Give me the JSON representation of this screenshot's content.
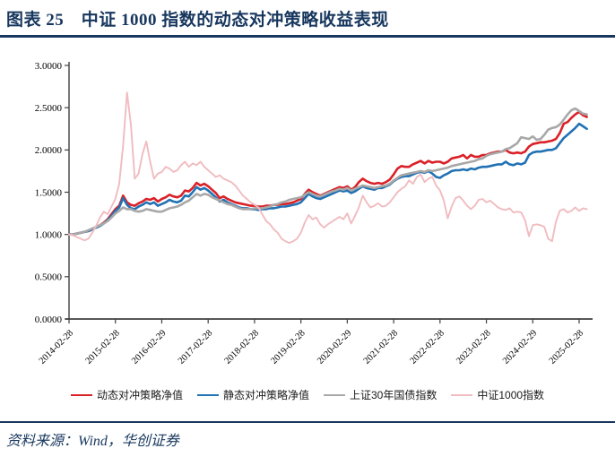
{
  "header": {
    "title": "图表 25　中证 1000 指数的动态对冲策略收益表现"
  },
  "footer": {
    "source": "资料来源：Wind，华创证券"
  },
  "colors": {
    "accent_navy": "#17375E",
    "axis": "#404040",
    "series_red": "#DA2128",
    "series_blue": "#2272B4",
    "series_gray": "#A8A8A8",
    "series_pink": "#F0BCC0"
  },
  "chart_data": {
    "type": "line",
    "title": "",
    "xlabel": "",
    "ylabel": "",
    "ylim": [
      0,
      3
    ],
    "grid": false,
    "legend_position": "bottom",
    "x_tick_labels": [
      "2014-02-28",
      "2015-02-28",
      "2016-02-29",
      "2017-02-28",
      "2018-02-28",
      "2019-02-28",
      "2020-02-29",
      "2021-02-28",
      "2022-02-28",
      "2023-02-28",
      "2024-02-29",
      "2025-02-28"
    ],
    "y_ticks": [
      {
        "value": 3.0,
        "label": "3.0000"
      },
      {
        "value": 2.5,
        "label": "2.5000"
      },
      {
        "value": 2.0,
        "label": "2.0000"
      },
      {
        "value": 1.5,
        "label": "1.5000"
      },
      {
        "value": 1.0,
        "label": "1.0000"
      },
      {
        "value": 0.5,
        "label": "0.5000"
      },
      {
        "value": 0.0,
        "label": "0.0000"
      }
    ],
    "points_per_tick": 12,
    "series": [
      {
        "name": "动态对冲策略净值",
        "color": "#DA2128",
        "line_width": 2.6,
        "values": [
          1.0,
          1.0,
          1.01,
          1.02,
          1.03,
          1.04,
          1.06,
          1.09,
          1.11,
          1.14,
          1.18,
          1.24,
          1.3,
          1.34,
          1.46,
          1.38,
          1.35,
          1.34,
          1.37,
          1.39,
          1.42,
          1.41,
          1.43,
          1.39,
          1.42,
          1.44,
          1.47,
          1.45,
          1.44,
          1.46,
          1.52,
          1.51,
          1.55,
          1.61,
          1.58,
          1.6,
          1.57,
          1.53,
          1.49,
          1.43,
          1.45,
          1.42,
          1.4,
          1.38,
          1.37,
          1.36,
          1.35,
          1.34,
          1.34,
          1.33,
          1.33,
          1.34,
          1.34,
          1.35,
          1.35,
          1.36,
          1.36,
          1.37,
          1.38,
          1.4,
          1.42,
          1.48,
          1.53,
          1.5,
          1.48,
          1.46,
          1.48,
          1.5,
          1.52,
          1.54,
          1.56,
          1.55,
          1.57,
          1.53,
          1.56,
          1.62,
          1.66,
          1.63,
          1.61,
          1.6,
          1.61,
          1.6,
          1.62,
          1.65,
          1.71,
          1.78,
          1.81,
          1.8,
          1.8,
          1.83,
          1.85,
          1.87,
          1.84,
          1.87,
          1.85,
          1.86,
          1.86,
          1.84,
          1.86,
          1.9,
          1.91,
          1.92,
          1.94,
          1.9,
          1.94,
          1.92,
          1.92,
          1.94,
          1.94,
          1.96,
          1.97,
          1.98,
          1.98,
          2.0,
          1.97,
          1.96,
          1.97,
          1.96,
          1.98,
          2.04,
          2.07,
          2.08,
          2.09,
          2.09,
          2.1,
          2.11,
          2.13,
          2.2,
          2.31,
          2.33,
          2.38,
          2.42,
          2.45,
          2.41,
          2.39
        ]
      },
      {
        "name": "静态对冲策略净值",
        "color": "#2272B4",
        "line_width": 2.6,
        "values": [
          1.0,
          1.0,
          1.01,
          1.02,
          1.03,
          1.04,
          1.06,
          1.08,
          1.1,
          1.13,
          1.17,
          1.22,
          1.28,
          1.32,
          1.43,
          1.35,
          1.31,
          1.3,
          1.33,
          1.35,
          1.38,
          1.36,
          1.38,
          1.34,
          1.36,
          1.38,
          1.41,
          1.39,
          1.38,
          1.4,
          1.46,
          1.45,
          1.5,
          1.56,
          1.53,
          1.55,
          1.52,
          1.48,
          1.44,
          1.39,
          1.41,
          1.38,
          1.36,
          1.34,
          1.32,
          1.31,
          1.31,
          1.3,
          1.3,
          1.29,
          1.3,
          1.3,
          1.31,
          1.31,
          1.32,
          1.33,
          1.33,
          1.34,
          1.35,
          1.36,
          1.38,
          1.43,
          1.48,
          1.45,
          1.43,
          1.42,
          1.44,
          1.46,
          1.48,
          1.5,
          1.52,
          1.51,
          1.52,
          1.49,
          1.51,
          1.54,
          1.57,
          1.55,
          1.54,
          1.53,
          1.55,
          1.55,
          1.57,
          1.59,
          1.63,
          1.66,
          1.68,
          1.69,
          1.69,
          1.71,
          1.73,
          1.74,
          1.73,
          1.75,
          1.72,
          1.68,
          1.67,
          1.7,
          1.72,
          1.75,
          1.76,
          1.76,
          1.77,
          1.76,
          1.78,
          1.77,
          1.79,
          1.8,
          1.8,
          1.81,
          1.82,
          1.83,
          1.83,
          1.86,
          1.83,
          1.82,
          1.84,
          1.83,
          1.85,
          1.94,
          1.97,
          1.98,
          1.98,
          1.99,
          2.0,
          2.0,
          2.02,
          2.08,
          2.14,
          2.18,
          2.22,
          2.26,
          2.31,
          2.28,
          2.25
        ]
      },
      {
        "name": "上证30年国债指数",
        "color": "#A8A8A8",
        "line_width": 2.6,
        "values": [
          1.0,
          1.0,
          1.01,
          1.02,
          1.03,
          1.05,
          1.07,
          1.09,
          1.11,
          1.13,
          1.16,
          1.2,
          1.25,
          1.28,
          1.32,
          1.3,
          1.3,
          1.28,
          1.27,
          1.28,
          1.3,
          1.29,
          1.28,
          1.27,
          1.27,
          1.29,
          1.31,
          1.32,
          1.33,
          1.35,
          1.38,
          1.4,
          1.44,
          1.48,
          1.46,
          1.48,
          1.47,
          1.44,
          1.42,
          1.4,
          1.38,
          1.36,
          1.35,
          1.33,
          1.31,
          1.3,
          1.3,
          1.3,
          1.31,
          1.31,
          1.31,
          1.32,
          1.33,
          1.35,
          1.36,
          1.38,
          1.39,
          1.41,
          1.42,
          1.43,
          1.44,
          1.47,
          1.5,
          1.48,
          1.46,
          1.45,
          1.47,
          1.49,
          1.51,
          1.52,
          1.54,
          1.53,
          1.55,
          1.52,
          1.54,
          1.56,
          1.58,
          1.57,
          1.56,
          1.55,
          1.56,
          1.57,
          1.58,
          1.6,
          1.64,
          1.67,
          1.7,
          1.71,
          1.72,
          1.73,
          1.74,
          1.75,
          1.74,
          1.76,
          1.75,
          1.76,
          1.77,
          1.78,
          1.79,
          1.81,
          1.82,
          1.83,
          1.84,
          1.85,
          1.86,
          1.87,
          1.89,
          1.9,
          1.93,
          1.95,
          1.96,
          1.97,
          1.98,
          2.01,
          2.02,
          2.05,
          2.08,
          2.15,
          2.14,
          2.13,
          2.16,
          2.12,
          2.13,
          2.18,
          2.24,
          2.26,
          2.27,
          2.3,
          2.36,
          2.42,
          2.47,
          2.49,
          2.46,
          2.43,
          2.42
        ]
      },
      {
        "name": "中证1000指数",
        "color": "#F0BCC0",
        "line_width": 1.9,
        "values": [
          1.0,
          0.99,
          0.97,
          0.95,
          0.93,
          0.95,
          1.02,
          1.1,
          1.2,
          1.27,
          1.24,
          1.33,
          1.42,
          1.6,
          2.05,
          2.68,
          2.3,
          1.66,
          1.72,
          1.95,
          2.1,
          1.86,
          1.66,
          1.72,
          1.74,
          1.8,
          1.78,
          1.74,
          1.76,
          1.82,
          1.86,
          1.8,
          1.84,
          1.82,
          1.86,
          1.8,
          1.76,
          1.72,
          1.68,
          1.7,
          1.66,
          1.64,
          1.62,
          1.58,
          1.52,
          1.46,
          1.42,
          1.38,
          1.35,
          1.32,
          1.24,
          1.16,
          1.12,
          1.06,
          1.02,
          0.95,
          0.92,
          0.9,
          0.92,
          0.95,
          1.02,
          1.14,
          1.23,
          1.18,
          1.2,
          1.12,
          1.08,
          1.12,
          1.15,
          1.18,
          1.21,
          1.18,
          1.25,
          1.13,
          1.22,
          1.32,
          1.46,
          1.38,
          1.32,
          1.34,
          1.37,
          1.33,
          1.34,
          1.38,
          1.44,
          1.5,
          1.54,
          1.57,
          1.64,
          1.6,
          1.68,
          1.71,
          1.62,
          1.66,
          1.68,
          1.58,
          1.52,
          1.4,
          1.19,
          1.33,
          1.43,
          1.45,
          1.4,
          1.34,
          1.3,
          1.34,
          1.41,
          1.42,
          1.38,
          1.4,
          1.36,
          1.32,
          1.3,
          1.29,
          1.31,
          1.26,
          1.27,
          1.26,
          1.17,
          0.98,
          1.11,
          1.12,
          1.11,
          1.09,
          0.95,
          0.92,
          1.15,
          1.28,
          1.3,
          1.26,
          1.28,
          1.32,
          1.28,
          1.31,
          1.3
        ]
      }
    ]
  }
}
